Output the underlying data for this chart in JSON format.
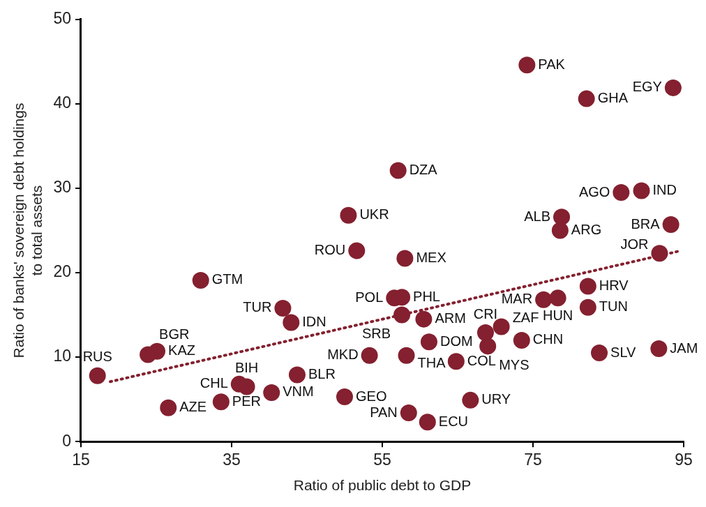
{
  "chart_data": {
    "type": "scatter",
    "xlabel": "Ratio of public debt to GDP",
    "ylabel": "Ratio of banks' sovereign debt holdings\nto total assets",
    "xlim": [
      15,
      95
    ],
    "xticks": [
      15,
      35,
      55,
      75,
      95
    ],
    "ylim": [
      0,
      50
    ],
    "yticks": [
      0,
      10,
      20,
      30,
      40,
      50
    ],
    "grid": false,
    "marker": "circle",
    "series": [
      {
        "color": "#84202f",
        "x": [
          17.2,
          23.9,
          25.1,
          26.6,
          30.9,
          33.6,
          36.0,
          37.0,
          40.3,
          41.8,
          42.9,
          43.7,
          50.0,
          50.5,
          51.6,
          53.3,
          57.1,
          56.6,
          57.6,
          57.6,
          58.0,
          58.2,
          58.5,
          60.5,
          61.0,
          61.2,
          64.8,
          66.7,
          68.7,
          69.0,
          70.8,
          73.5,
          74.2,
          76.4,
          78.3,
          78.6,
          78.8,
          82.1,
          82.3,
          82.3,
          83.8,
          86.7,
          89.4,
          91.7,
          91.8,
          93.3,
          93.6
        ],
        "values": [
          7.8,
          10.3,
          10.7,
          4.0,
          19.1,
          4.7,
          6.8,
          6.5,
          5.8,
          15.8,
          14.1,
          7.9,
          5.3,
          26.8,
          22.6,
          10.2,
          32.1,
          17.0,
          17.1,
          15.0,
          21.7,
          10.2,
          3.4,
          14.5,
          2.3,
          11.8,
          9.5,
          4.9,
          12.9,
          11.3,
          13.6,
          12.0,
          44.6,
          16.8,
          17.0,
          25.0,
          26.6,
          40.6,
          18.4,
          15.9,
          10.5,
          29.5,
          29.7,
          11.0,
          22.3,
          25.7,
          41.9
        ]
      },
      {
        "type": "line",
        "color": "#84202f",
        "line_style": "dotted",
        "marker": "none",
        "x": [
          18.9,
          94.6
        ],
        "values": [
          7.1,
          22.6
        ]
      }
    ],
    "annotations": [
      {
        "text": "RUS",
        "x": 17.2,
        "y": 7.8
      },
      {
        "text": "BGR",
        "x": 23.9,
        "y": 10.3
      },
      {
        "text": "KAZ",
        "x": 25.1,
        "y": 10.7
      },
      {
        "text": "AZE",
        "x": 26.6,
        "y": 4.0
      },
      {
        "text": "GTM",
        "x": 30.9,
        "y": 19.1
      },
      {
        "text": "PER",
        "x": 33.6,
        "y": 4.7
      },
      {
        "text": "CHL",
        "x": 36.0,
        "y": 6.8
      },
      {
        "text": "BIH",
        "x": 37.0,
        "y": 6.5
      },
      {
        "text": "VNM",
        "x": 40.3,
        "y": 5.8
      },
      {
        "text": "TUR",
        "x": 41.8,
        "y": 15.8
      },
      {
        "text": "IDN",
        "x": 42.9,
        "y": 14.1
      },
      {
        "text": "BLR",
        "x": 43.7,
        "y": 7.9
      },
      {
        "text": "GEO",
        "x": 50.0,
        "y": 5.3
      },
      {
        "text": "UKR",
        "x": 50.5,
        "y": 26.8
      },
      {
        "text": "ROU",
        "x": 51.6,
        "y": 22.6
      },
      {
        "text": "MKD",
        "x": 53.3,
        "y": 10.2
      },
      {
        "text": "DZA",
        "x": 57.1,
        "y": 32.1
      },
      {
        "text": "POL",
        "x": 56.6,
        "y": 17.0
      },
      {
        "text": "PHL",
        "x": 57.6,
        "y": 17.1
      },
      {
        "text": "SRB",
        "x": 57.6,
        "y": 15.0
      },
      {
        "text": "MEX",
        "x": 58.0,
        "y": 21.7
      },
      {
        "text": "THA",
        "x": 58.2,
        "y": 10.2
      },
      {
        "text": "PAN",
        "x": 58.5,
        "y": 3.4
      },
      {
        "text": "ARM",
        "x": 60.5,
        "y": 14.5
      },
      {
        "text": "ECU",
        "x": 61.0,
        "y": 2.3
      },
      {
        "text": "DOM",
        "x": 61.2,
        "y": 11.8
      },
      {
        "text": "COL",
        "x": 64.8,
        "y": 9.5
      },
      {
        "text": "URY",
        "x": 66.7,
        "y": 4.9
      },
      {
        "text": "CRI",
        "x": 68.7,
        "y": 12.9
      },
      {
        "text": "MYS",
        "x": 69.0,
        "y": 11.3
      },
      {
        "text": "ZAF",
        "x": 70.8,
        "y": 13.6
      },
      {
        "text": "CHN",
        "x": 73.5,
        "y": 12.0
      },
      {
        "text": "PAK",
        "x": 74.2,
        "y": 44.6
      },
      {
        "text": "MAR",
        "x": 76.4,
        "y": 16.8
      },
      {
        "text": "HUN",
        "x": 78.3,
        "y": 17.0
      },
      {
        "text": "ARG",
        "x": 78.6,
        "y": 25.0
      },
      {
        "text": "ALB",
        "x": 78.8,
        "y": 26.6
      },
      {
        "text": "GHA",
        "x": 82.1,
        "y": 40.6
      },
      {
        "text": "HRV",
        "x": 82.3,
        "y": 18.4
      },
      {
        "text": "TUN",
        "x": 82.3,
        "y": 15.9
      },
      {
        "text": "SLV",
        "x": 83.8,
        "y": 10.5
      },
      {
        "text": "AGO",
        "x": 86.7,
        "y": 29.5
      },
      {
        "text": "IND",
        "x": 89.4,
        "y": 29.7
      },
      {
        "text": "JAM",
        "x": 91.7,
        "y": 11.0
      },
      {
        "text": "JOR",
        "x": 91.8,
        "y": 22.3
      },
      {
        "text": "BRA",
        "x": 93.3,
        "y": 25.7
      },
      {
        "text": "EGY",
        "x": 93.6,
        "y": 41.9
      }
    ]
  }
}
